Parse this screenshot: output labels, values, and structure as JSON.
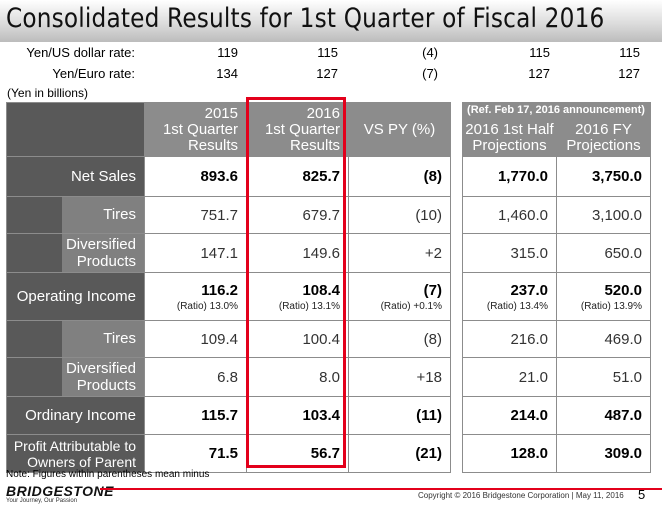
{
  "title": "Consolidated Results for 1st Quarter of Fiscal 2016",
  "rates": [
    {
      "label": "Yen/US dollar rate:",
      "values": [
        "119",
        "115",
        "(4)",
        "115",
        "115"
      ]
    },
    {
      "label": "Yen/Euro rate:",
      "values": [
        "134",
        "127",
        "(7)",
        "127",
        "127"
      ]
    }
  ],
  "units": "(Yen in billions)",
  "ref_note": "(Ref.  Feb 17, 2016 announcement)",
  "headers": {
    "q2015": [
      "2015",
      "1st Quarter",
      "Results"
    ],
    "q2016": [
      "2016",
      "1st Quarter",
      "Results"
    ],
    "vspy": "VS PY (%)",
    "half": [
      "2016 1st Half",
      "Projections"
    ],
    "fy": [
      "2016  FY",
      "Projections"
    ]
  },
  "rows": {
    "net_sales": {
      "label": "Net Sales",
      "values": [
        "893.6",
        "825.7",
        "(8)",
        "1,770.0",
        "3,750.0"
      ]
    },
    "ns_tires": {
      "label": "Tires",
      "values": [
        "751.7",
        "679.7",
        "(10)",
        "1,460.0",
        "3,100.0"
      ]
    },
    "ns_div": {
      "label": [
        "Diversified",
        "Products"
      ],
      "values": [
        "147.1",
        "149.6",
        "+2",
        "315.0",
        "650.0"
      ]
    },
    "op_income": {
      "label": "Operating Income",
      "values": [
        "116.2",
        "108.4",
        "(7)",
        "237.0",
        "520.0"
      ],
      "ratios": [
        "(Ratio) 13.0%",
        "(Ratio) 13.1%",
        "(Ratio) +0.1%",
        "(Ratio) 13.4%",
        "(Ratio) 13.9%"
      ]
    },
    "oi_tires": {
      "label": "Tires",
      "values": [
        "109.4",
        "100.4",
        "(8)",
        "216.0",
        "469.0"
      ]
    },
    "oi_div": {
      "label": [
        "Diversified",
        "Products"
      ],
      "values": [
        "6.8",
        "8.0",
        "+18",
        "21.0",
        "51.0"
      ]
    },
    "ord_income": {
      "label": "Ordinary Income",
      "values": [
        "115.7",
        "103.4",
        "(11)",
        "214.0",
        "487.0"
      ]
    },
    "profit": {
      "label": [
        "Profit Attributable to",
        "Owners of Parent"
      ],
      "values": [
        "71.5",
        "56.7",
        "(21)",
        "128.0",
        "309.0"
      ]
    }
  },
  "note": "Note: Figures within parentheses mean minus",
  "logo": "BRIDGESTONE",
  "tagline": "Your Journey, Our Passion",
  "copyright": "Copyright © 2016 Bridgestone Corporation  |  May 11, 2016",
  "page_number": "5",
  "colors": {
    "accent_red": "#e3001b",
    "header_gray": "#8c8c8c",
    "label_dark": "#595959",
    "label_light": "#808080"
  }
}
